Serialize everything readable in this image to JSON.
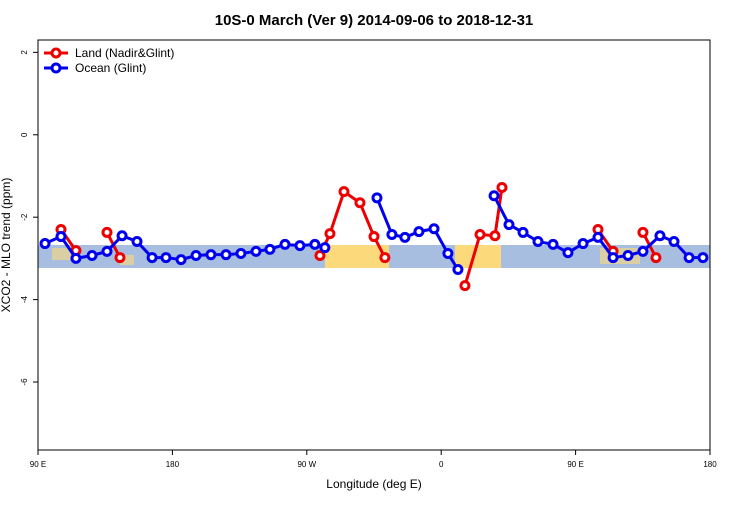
{
  "chart_data": {
    "type": "line",
    "title": "10S-0 March (Ver 9)   2014-09-06 to 2018-12-31",
    "x_label": "Longitude (deg E)",
    "y_label": "XCO2 - MLO trend (ppm)",
    "xlim": [
      90,
      540
    ],
    "xticks": [
      {
        "value": 90,
        "label": "90 E"
      },
      {
        "value": 180,
        "label": "180"
      },
      {
        "value": 270,
        "label": "90 W"
      },
      {
        "value": 360,
        "label": "0"
      },
      {
        "value": 450,
        "label": "90 E"
      },
      {
        "value": 540,
        "label": "180"
      }
    ],
    "ylim": [
      -7.65,
      2.3
    ],
    "yticks": [
      -6,
      -4,
      -2,
      0,
      2
    ],
    "legend": "top-left",
    "series": [
      {
        "name": "Land (Nadir&Glint)",
        "color": "#ee0000",
        "x": [
          105.4,
          115.4,
          null,
          136.2,
          144.9,
          null,
          278.8,
          285.5,
          294.9,
          305.6,
          315,
          322.3,
          null,
          375.9,
          386,
          396,
          400.7,
          null,
          465,
          475.1,
          null,
          495.1,
          503.8
        ],
        "values": [
          -2.3,
          -2.81,
          null,
          -2.37,
          -2.98,
          null,
          -2.93,
          -2.4,
          -1.38,
          -1.65,
          -2.47,
          -2.98,
          null,
          -3.66,
          -2.42,
          -2.45,
          -1.28,
          null,
          -2.3,
          -2.83,
          null,
          -2.37,
          -2.98
        ]
      },
      {
        "name": "Ocean (Glint)",
        "color": "#0000ee",
        "x": [
          94.7,
          105.4,
          115.4,
          126.2,
          136.2,
          146.3,
          156.3,
          166.4,
          175.7,
          185.8,
          195.8,
          205.8,
          215.9,
          225.9,
          236,
          245.3,
          255.4,
          265.4,
          275.4,
          282.1,
          null,
          317,
          327,
          335.7,
          345.1,
          355.2,
          364.5,
          371.2,
          null,
          395.4,
          405.4,
          414.8,
          424.8,
          434.9,
          444.9,
          455,
          465,
          475.1,
          485.1,
          495.1,
          506.5,
          515.9,
          526,
          535.3
        ],
        "values": [
          -2.64,
          -2.47,
          -3.0,
          -2.93,
          -2.83,
          -2.45,
          -2.59,
          -2.98,
          -2.98,
          -3.03,
          -2.93,
          -2.91,
          -2.91,
          -2.88,
          -2.83,
          -2.78,
          -2.66,
          -2.69,
          -2.66,
          -2.74,
          null,
          -1.53,
          -2.42,
          -2.49,
          -2.35,
          -2.28,
          -2.88,
          -3.27,
          null,
          -1.48,
          -2.18,
          -2.37,
          -2.59,
          -2.66,
          -2.86,
          -2.64,
          -2.49,
          -2.98,
          -2.93,
          -2.83,
          -2.45,
          -2.59,
          -2.98,
          -2.98
        ]
      }
    ]
  }
}
